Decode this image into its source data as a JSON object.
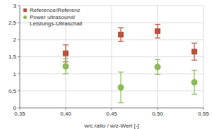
{
  "chart_data": {
    "type": "scatter",
    "x_label": "w/c ratio / w/z-Wert [-]",
    "x": [
      0.4,
      0.46,
      0.5,
      0.54
    ],
    "series": [
      {
        "name": "Reference/Referenz",
        "color": "#b9533d",
        "marker": "square",
        "values": [
          1.6,
          2.15,
          2.25,
          1.65
        ],
        "errors": [
          0.25,
          0.2,
          0.2,
          0.25
        ]
      },
      {
        "name": "Power ultrasound/ Leistungs-Ultraschall",
        "color": "#8cba5b",
        "marker": "circle",
        "values": [
          1.22,
          0.6,
          1.2,
          0.75
        ],
        "errors": [
          0.22,
          0.45,
          0.22,
          0.35
        ]
      }
    ],
    "xlim": [
      0.35,
      0.55
    ],
    "xticks": [
      {
        "value": 0.35,
        "label": "0,35"
      },
      {
        "value": 0.4,
        "label": "0,40"
      },
      {
        "value": 0.45,
        "label": "0,45"
      },
      {
        "value": 0.5,
        "label": "0,50"
      },
      {
        "value": 0.55,
        "label": "0,55"
      }
    ],
    "ylim": [
      0,
      3
    ],
    "yticks": [
      0,
      {
        "value": 0.5,
        "label": "0,5"
      },
      1,
      {
        "value": 1.5,
        "label": "1,5"
      },
      2,
      {
        "value": 2.5,
        "label": "2,5"
      },
      3
    ],
    "grid": true,
    "legend": "upper left"
  }
}
